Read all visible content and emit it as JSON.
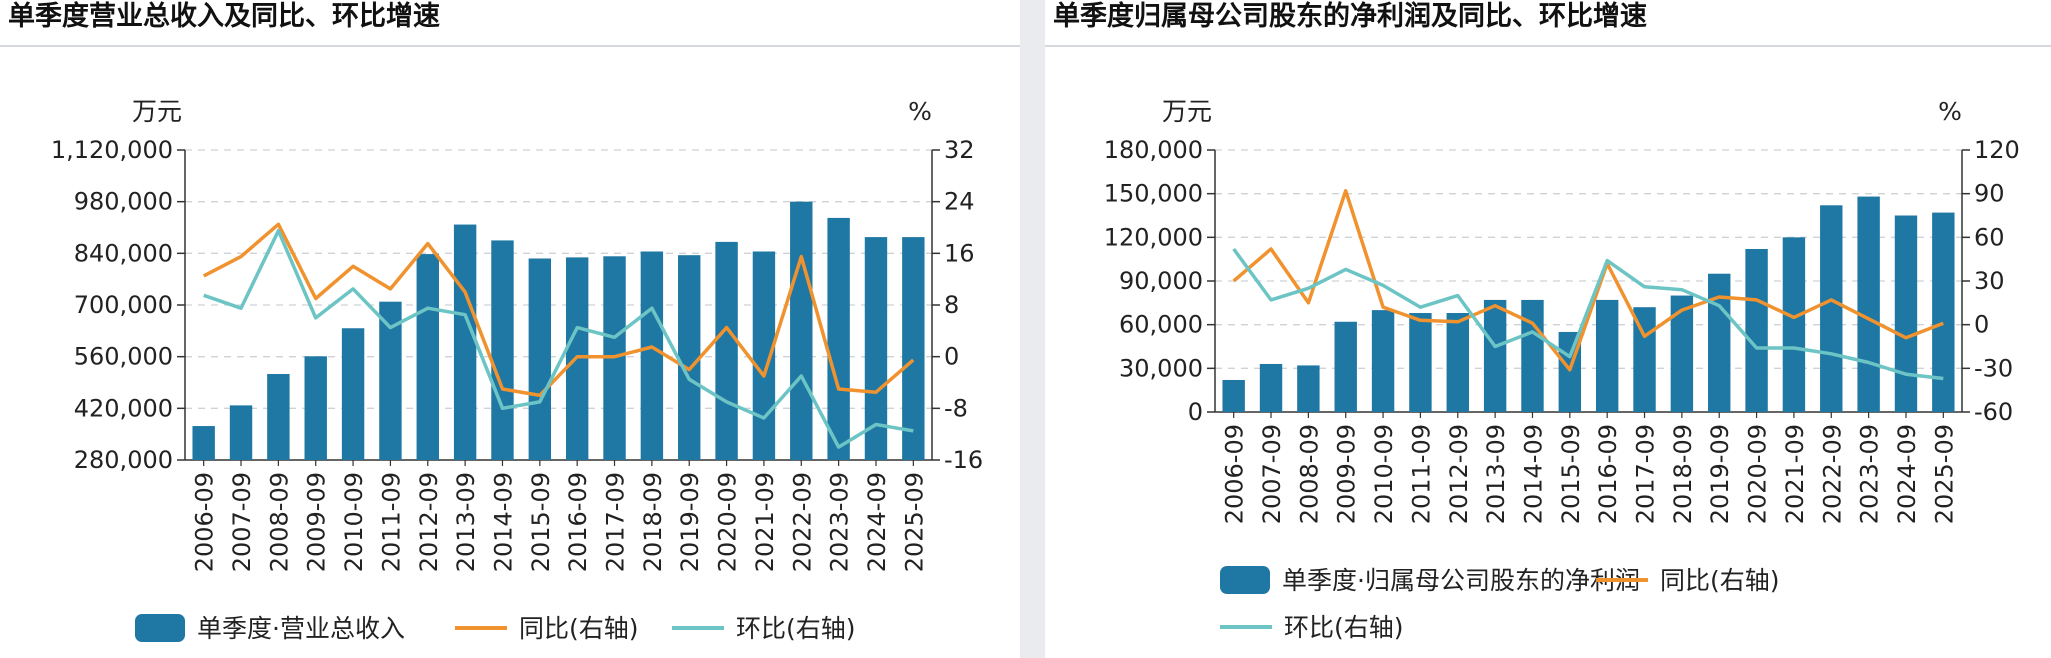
{
  "colors": {
    "bar": "#1f77a4",
    "yoy": "#f0922e",
    "qoq": "#6cc4c4",
    "grid": "#cfd3d8",
    "axis": "#333333"
  },
  "charts": [
    {
      "title": "单季度营业总收入及同比、环比增速"
    },
    {
      "title": "单季度归属母公司股东的净利润及同比、环比增速"
    }
  ],
  "chart_data": [
    {
      "type": "bar",
      "title": "单季度营业总收入及同比、环比增速",
      "categories": [
        "2006-09",
        "2007-09",
        "2008-09",
        "2009-09",
        "2010-09",
        "2011-09",
        "2012-09",
        "2013-09",
        "2014-09",
        "2015-09",
        "2016-09",
        "2017-09",
        "2018-09",
        "2019-09",
        "2020-09",
        "2021-09",
        "2022-09",
        "2023-09",
        "2024-09",
        "2025-09"
      ],
      "y_unit": "万元",
      "y2_unit": "%",
      "ylim": [
        280000,
        1120000
      ],
      "yticks": [
        280000,
        420000,
        560000,
        700000,
        840000,
        980000,
        1120000
      ],
      "ytick_labels": [
        "280,000",
        "420,000",
        "560,000",
        "700,000",
        "840,000",
        "980,000",
        "1,120,000"
      ],
      "y2lim": [
        -16,
        32
      ],
      "y2ticks": [
        -16,
        -8,
        0,
        8,
        16,
        24,
        32
      ],
      "y2tick_labels": [
        "-16",
        "-8",
        "0",
        "8",
        "16",
        "24",
        "32"
      ],
      "series": [
        {
          "name": "单季度·营业总收入",
          "kind": "bar",
          "axis": "left",
          "values": [
            372000,
            428000,
            513000,
            561000,
            637000,
            709000,
            838000,
            918000,
            875000,
            826000,
            829000,
            832000,
            845000,
            835000,
            871000,
            845000,
            980000,
            936000,
            884000,
            884000
          ]
        },
        {
          "name": "同比(右轴)",
          "kind": "line",
          "axis": "right",
          "values": [
            12.5,
            15.5,
            20.5,
            9,
            14,
            10.5,
            17.5,
            10,
            -5,
            -6,
            0,
            0,
            1.5,
            -2,
            4.5,
            -3,
            15.5,
            -5,
            -5.5,
            -0.5
          ]
        },
        {
          "name": "环比(右轴)",
          "kind": "line",
          "axis": "right",
          "values": [
            9.5,
            7.5,
            19.5,
            6,
            10.5,
            4.5,
            7.5,
            6.5,
            -8,
            -7,
            4.5,
            3,
            7.5,
            -3.5,
            -7,
            -9.5,
            -3,
            -14,
            -10.5,
            -11.5
          ]
        }
      ],
      "grid": true,
      "legend": "bottom"
    },
    {
      "type": "bar",
      "title": "单季度归属母公司股东的净利润及同比、环比增速",
      "categories": [
        "2006-09",
        "2007-09",
        "2008-09",
        "2009-09",
        "2010-09",
        "2011-09",
        "2012-09",
        "2013-09",
        "2014-09",
        "2015-09",
        "2016-09",
        "2017-09",
        "2018-09",
        "2019-09",
        "2020-09",
        "2021-09",
        "2022-09",
        "2023-09",
        "2024-09",
        "2025-09"
      ],
      "y_unit": "万元",
      "y2_unit": "%",
      "ylim": [
        0,
        180000
      ],
      "yticks": [
        0,
        30000,
        60000,
        90000,
        120000,
        150000,
        180000
      ],
      "ytick_labels": [
        "0",
        "30,000",
        "60,000",
        "90,000",
        "120,000",
        "150,000",
        "180,000"
      ],
      "y2lim": [
        -60,
        120
      ],
      "y2ticks": [
        -60,
        -30,
        0,
        30,
        60,
        90,
        120
      ],
      "y2tick_labels": [
        "-60",
        "-30",
        "0",
        "30",
        "60",
        "90",
        "120"
      ],
      "series": [
        {
          "name": "单季度·归属母公司股东的净利润",
          "kind": "bar",
          "axis": "left",
          "values": [
            22000,
            33000,
            32000,
            62000,
            70000,
            68000,
            68000,
            77000,
            77000,
            55000,
            77000,
            72000,
            80000,
            95000,
            112000,
            120000,
            142000,
            148000,
            135000,
            137000
          ]
        },
        {
          "name": "同比(右轴)",
          "kind": "line",
          "axis": "right",
          "values": [
            30,
            52,
            15,
            92,
            12,
            3,
            2,
            13,
            1,
            -31,
            42,
            -8,
            10,
            19,
            17,
            5,
            17,
            4,
            -9,
            1
          ]
        },
        {
          "name": "环比(右轴)",
          "kind": "line",
          "axis": "right",
          "values": [
            52,
            17,
            25,
            38,
            27,
            12,
            20,
            -15,
            -5,
            -22,
            44,
            26,
            24,
            13,
            -16,
            -16,
            -20,
            -26,
            -34,
            -37
          ]
        }
      ],
      "grid": true,
      "legend": "bottom"
    }
  ]
}
